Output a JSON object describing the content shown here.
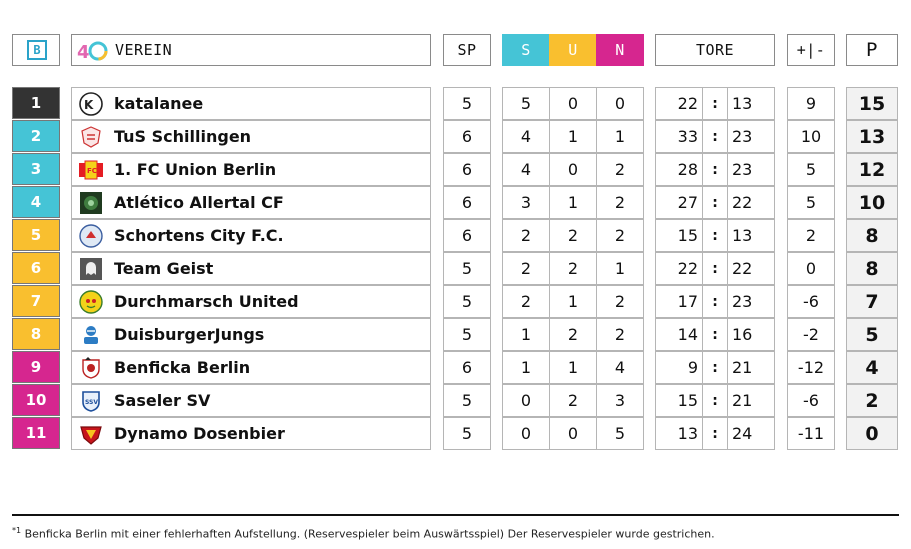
{
  "header": {
    "b_label": "B",
    "club_label": "VEREIN",
    "sp_label": "SP",
    "s_label": "S",
    "u_label": "U",
    "n_label": "N",
    "tore_label": "TORE",
    "diff_label": "+|-",
    "p_label": "P",
    "anniversary_logo": "40"
  },
  "colors": {
    "rank1": "#333333",
    "cyan": "#45c4d6",
    "yellow": "#f9bf2f",
    "magenta": "#d6268f"
  },
  "rows": [
    {
      "rank": "1",
      "name": "katalanee",
      "sp": "5",
      "s": "5",
      "u": "0",
      "n": "0",
      "gf": "22",
      "ga": "13",
      "diff": "9",
      "pts": "15"
    },
    {
      "rank": "2",
      "name": "TuS Schillingen",
      "sp": "6",
      "s": "4",
      "u": "1",
      "n": "1",
      "gf": "33",
      "ga": "23",
      "diff": "10",
      "pts": "13"
    },
    {
      "rank": "3",
      "name": "1. FC Union Berlin",
      "sp": "6",
      "s": "4",
      "u": "0",
      "n": "2",
      "gf": "28",
      "ga": "23",
      "diff": "5",
      "pts": "12"
    },
    {
      "rank": "4",
      "name": "Atlético Allertal CF",
      "sp": "6",
      "s": "3",
      "u": "1",
      "n": "2",
      "gf": "27",
      "ga": "22",
      "diff": "5",
      "pts": "10"
    },
    {
      "rank": "5",
      "name": "Schortens City F.C.",
      "sp": "6",
      "s": "2",
      "u": "2",
      "n": "2",
      "gf": "15",
      "ga": "13",
      "diff": "2",
      "pts": "8"
    },
    {
      "rank": "6",
      "name": "Team Geist",
      "sp": "5",
      "s": "2",
      "u": "2",
      "n": "1",
      "gf": "22",
      "ga": "22",
      "diff": "0",
      "pts": "8"
    },
    {
      "rank": "7",
      "name": "Durchmarsch United",
      "sp": "5",
      "s": "2",
      "u": "1",
      "n": "2",
      "gf": "17",
      "ga": "23",
      "diff": "-6",
      "pts": "7"
    },
    {
      "rank": "8",
      "name": "DuisburgerJungs",
      "sp": "5",
      "s": "1",
      "u": "2",
      "n": "2",
      "gf": "14",
      "ga": "16",
      "diff": "-2",
      "pts": "5"
    },
    {
      "rank": "9",
      "name": "Benficka Berlin",
      "sp": "6",
      "s": "1",
      "u": "1",
      "n": "4",
      "gf": "9",
      "ga": "21",
      "diff": "-12",
      "pts": "4"
    },
    {
      "rank": "10",
      "name": "Saseler SV",
      "sp": "5",
      "s": "0",
      "u": "2",
      "n": "3",
      "gf": "15",
      "ga": "21",
      "diff": "-6",
      "pts": "2"
    },
    {
      "rank": "11",
      "name": "Dynamo Dosenbier",
      "sp": "5",
      "s": "0",
      "u": "0",
      "n": "5",
      "gf": "13",
      "ga": "24",
      "diff": "-11",
      "pts": "0"
    }
  ],
  "footnote": {
    "marker": "*1",
    "text": "Benficka Berlin mit einer fehlerhaften Aufstellung. (Reservespieler beim Auswärtsspiel) Der Reservespieler wurde gestrichen."
  }
}
